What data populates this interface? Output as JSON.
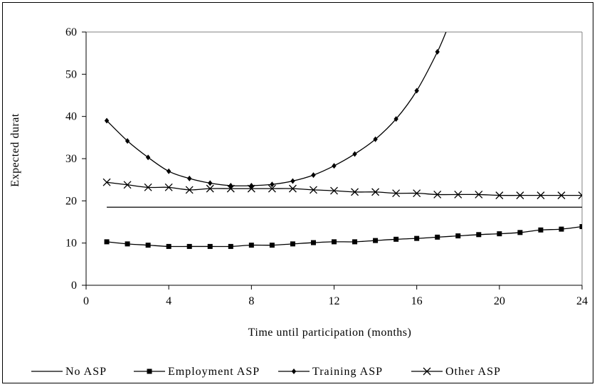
{
  "chart_data": {
    "type": "line",
    "xlabel": "Time until participation (months)",
    "ylabel": "Expected durat",
    "xlim": [
      0,
      24
    ],
    "ylim": [
      0,
      60
    ],
    "x_ticks": [
      "0",
      "4",
      "8",
      "12",
      "16",
      "20",
      "24"
    ],
    "y_ticks": [
      "0",
      "10",
      "20",
      "30",
      "40",
      "50",
      "60"
    ],
    "grid": false,
    "legend_position": "bottom",
    "x": [
      1,
      2,
      3,
      4,
      5,
      6,
      7,
      8,
      9,
      10,
      11,
      12,
      13,
      14,
      15,
      16,
      17,
      18,
      19,
      20,
      21,
      22,
      23,
      24
    ],
    "series": [
      {
        "name": "No ASP",
        "marker": "none",
        "values": [
          18.5,
          18.5,
          18.5,
          18.5,
          18.5,
          18.5,
          18.5,
          18.5,
          18.5,
          18.5,
          18.5,
          18.5,
          18.5,
          18.5,
          18.5,
          18.5,
          18.5,
          18.5,
          18.5,
          18.5,
          18.5,
          18.5,
          18.5,
          18.5
        ]
      },
      {
        "name": "Employment ASP",
        "marker": "square",
        "values": [
          10.3,
          9.8,
          9.5,
          9.2,
          9.2,
          9.2,
          9.2,
          9.5,
          9.5,
          9.8,
          10.1,
          10.3,
          10.3,
          10.6,
          10.9,
          11.1,
          11.4,
          11.7,
          12.0,
          12.2,
          12.5,
          13.1,
          13.3,
          13.9
        ]
      },
      {
        "name": "Training ASP",
        "marker": "diamond",
        "values": [
          39.0,
          34.2,
          30.3,
          27.0,
          25.3,
          24.2,
          23.6,
          23.6,
          23.9,
          24.7,
          26.1,
          28.3,
          31.1,
          34.6,
          39.4,
          46.1,
          55.3,
          null,
          null,
          null,
          null,
          null,
          null,
          null
        ],
        "line_extends_to": {
          "x": 17.5,
          "y": 61
        }
      },
      {
        "name": "Other ASP",
        "marker": "x",
        "values": [
          24.4,
          23.8,
          23.2,
          23.2,
          22.6,
          22.9,
          22.9,
          22.9,
          22.9,
          22.9,
          22.6,
          22.4,
          22.1,
          22.1,
          21.8,
          21.8,
          21.5,
          21.5,
          21.5,
          21.3,
          21.3,
          21.3,
          21.3,
          21.3
        ]
      }
    ]
  },
  "colors": {
    "line": "#000000",
    "background": "#ffffff"
  }
}
